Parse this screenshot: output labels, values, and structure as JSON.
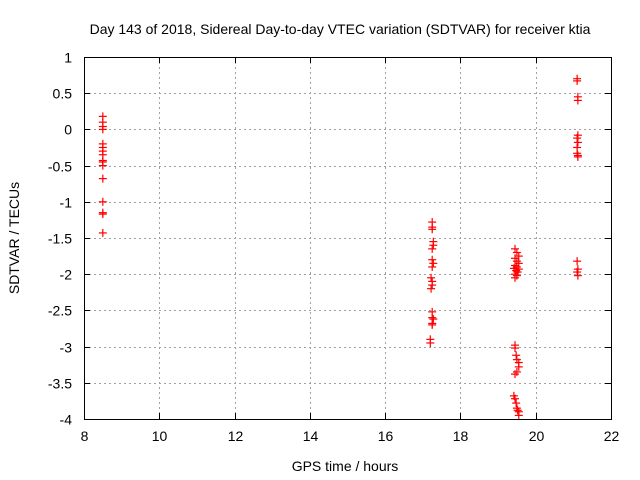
{
  "chart_data": {
    "type": "scatter",
    "title": "Day 143 of 2018, Sidereal Day-to-day VTEC variation (SDTVAR) for receiver ktia",
    "xlabel": "GPS time / hours",
    "ylabel": "SDTVAR / TECUs",
    "xlim": [
      8,
      22
    ],
    "ylim": [
      -4,
      1
    ],
    "xticks": [
      "8",
      "10",
      "12",
      "14",
      "16",
      "18",
      "20",
      "22"
    ],
    "yticks": [
      "1",
      "0.5",
      "0",
      "-0.5",
      "-1",
      "-1.5",
      "-2",
      "-2.5",
      "-3",
      "-3.5",
      "-4"
    ],
    "grid": true,
    "marker": "+",
    "marker_color": "#ff0000",
    "series": [
      {
        "points": [
          [
            8.5,
            0.18
          ],
          [
            8.5,
            0.1
          ],
          [
            8.5,
            0.04
          ],
          [
            8.5,
            0.0
          ],
          [
            8.5,
            -0.2
          ],
          [
            8.5,
            -0.25
          ],
          [
            8.5,
            -0.3
          ],
          [
            8.5,
            -0.35
          ],
          [
            8.5,
            -0.43
          ],
          [
            8.5,
            -0.45
          ],
          [
            8.5,
            -0.5
          ],
          [
            8.5,
            -0.68
          ],
          [
            8.5,
            -1.0
          ],
          [
            8.5,
            -1.15
          ],
          [
            8.5,
            -1.17
          ],
          [
            8.5,
            -1.43
          ],
          [
            17.25,
            -1.28
          ],
          [
            17.25,
            -1.35
          ],
          [
            17.25,
            -1.38
          ],
          [
            17.28,
            -1.55
          ],
          [
            17.28,
            -1.6
          ],
          [
            17.25,
            -1.65
          ],
          [
            17.25,
            -1.8
          ],
          [
            17.28,
            -1.85
          ],
          [
            17.25,
            -1.9
          ],
          [
            17.22,
            -2.05
          ],
          [
            17.25,
            -2.1
          ],
          [
            17.25,
            -2.15
          ],
          [
            17.22,
            -2.2
          ],
          [
            17.25,
            -2.52
          ],
          [
            17.25,
            -2.6
          ],
          [
            17.28,
            -2.62
          ],
          [
            17.25,
            -2.68
          ],
          [
            17.25,
            -2.7
          ],
          [
            17.2,
            -2.9
          ],
          [
            17.2,
            -2.95
          ],
          [
            19.45,
            -1.65
          ],
          [
            19.5,
            -1.7
          ],
          [
            19.55,
            -1.75
          ],
          [
            19.45,
            -1.78
          ],
          [
            19.5,
            -1.82
          ],
          [
            19.55,
            -1.85
          ],
          [
            19.45,
            -1.88
          ],
          [
            19.5,
            -1.9
          ],
          [
            19.42,
            -1.92
          ],
          [
            19.55,
            -1.93
          ],
          [
            19.48,
            -1.95
          ],
          [
            19.52,
            -1.97
          ],
          [
            19.45,
            -2.0
          ],
          [
            19.5,
            -2.02
          ],
          [
            19.45,
            -2.05
          ],
          [
            19.45,
            -2.98
          ],
          [
            19.45,
            -3.02
          ],
          [
            19.48,
            -3.12
          ],
          [
            19.5,
            -3.18
          ],
          [
            19.55,
            -3.22
          ],
          [
            19.55,
            -3.28
          ],
          [
            19.5,
            -3.35
          ],
          [
            19.45,
            -3.38
          ],
          [
            19.42,
            -3.68
          ],
          [
            19.45,
            -3.72
          ],
          [
            19.48,
            -3.78
          ],
          [
            19.5,
            -3.85
          ],
          [
            19.52,
            -3.88
          ],
          [
            19.55,
            -3.9
          ],
          [
            19.55,
            -3.95
          ],
          [
            21.1,
            0.7
          ],
          [
            21.1,
            0.67
          ],
          [
            21.12,
            0.45
          ],
          [
            21.12,
            0.4
          ],
          [
            21.12,
            -0.08
          ],
          [
            21.1,
            -0.12
          ],
          [
            21.12,
            -0.18
          ],
          [
            21.1,
            -0.25
          ],
          [
            21.1,
            -0.33
          ],
          [
            21.12,
            -0.36
          ],
          [
            21.12,
            -0.38
          ],
          [
            21.1,
            -1.82
          ],
          [
            21.12,
            -1.93
          ],
          [
            21.1,
            -1.97
          ],
          [
            21.12,
            -2.02
          ]
        ]
      }
    ]
  }
}
